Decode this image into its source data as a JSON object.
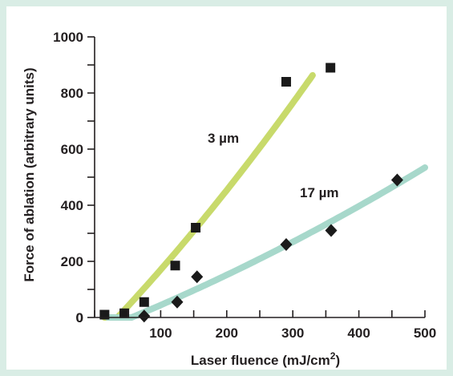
{
  "colors": {
    "background": "#d9ede5",
    "plot_background": "#ffffff",
    "series_3um_curve": "#c8da6b",
    "series_17um_curve": "#a7d8cb",
    "markers": "#1a1a1a",
    "axis": "#231f20"
  },
  "chart_data": {
    "type": "scatter",
    "xlabel": "Laser fluence (mJ/cm",
    "xlabel_superscript": "2",
    "xlabel_suffix": ")",
    "ylabel": "Force of ablation (arbitrary units)",
    "xlim": [
      0,
      500
    ],
    "ylim": [
      0,
      1000
    ],
    "xticks": [
      0,
      100,
      200,
      300,
      400,
      500
    ],
    "yticks": [
      0,
      200,
      400,
      600,
      800,
      1000
    ],
    "grid": false,
    "series": [
      {
        "name": "3 µm",
        "marker": "square",
        "curve_color": "#c8da6b",
        "points": [
          {
            "x": 15,
            "y": 10
          },
          {
            "x": 45,
            "y": 15
          },
          {
            "x": 75,
            "y": 55
          },
          {
            "x": 122,
            "y": 185
          },
          {
            "x": 153,
            "y": 320
          },
          {
            "x": 290,
            "y": 840
          },
          {
            "x": 357,
            "y": 890
          }
        ],
        "fit_curve_range": [
          15,
          330
        ]
      },
      {
        "name": "17 µm",
        "marker": "diamond",
        "curve_color": "#a7d8cb",
        "points": [
          {
            "x": 75,
            "y": 5
          },
          {
            "x": 125,
            "y": 55
          },
          {
            "x": 155,
            "y": 145
          },
          {
            "x": 290,
            "y": 260
          },
          {
            "x": 358,
            "y": 310
          },
          {
            "x": 458,
            "y": 490
          }
        ],
        "fit_curve_range": [
          20,
          500
        ]
      }
    ]
  }
}
